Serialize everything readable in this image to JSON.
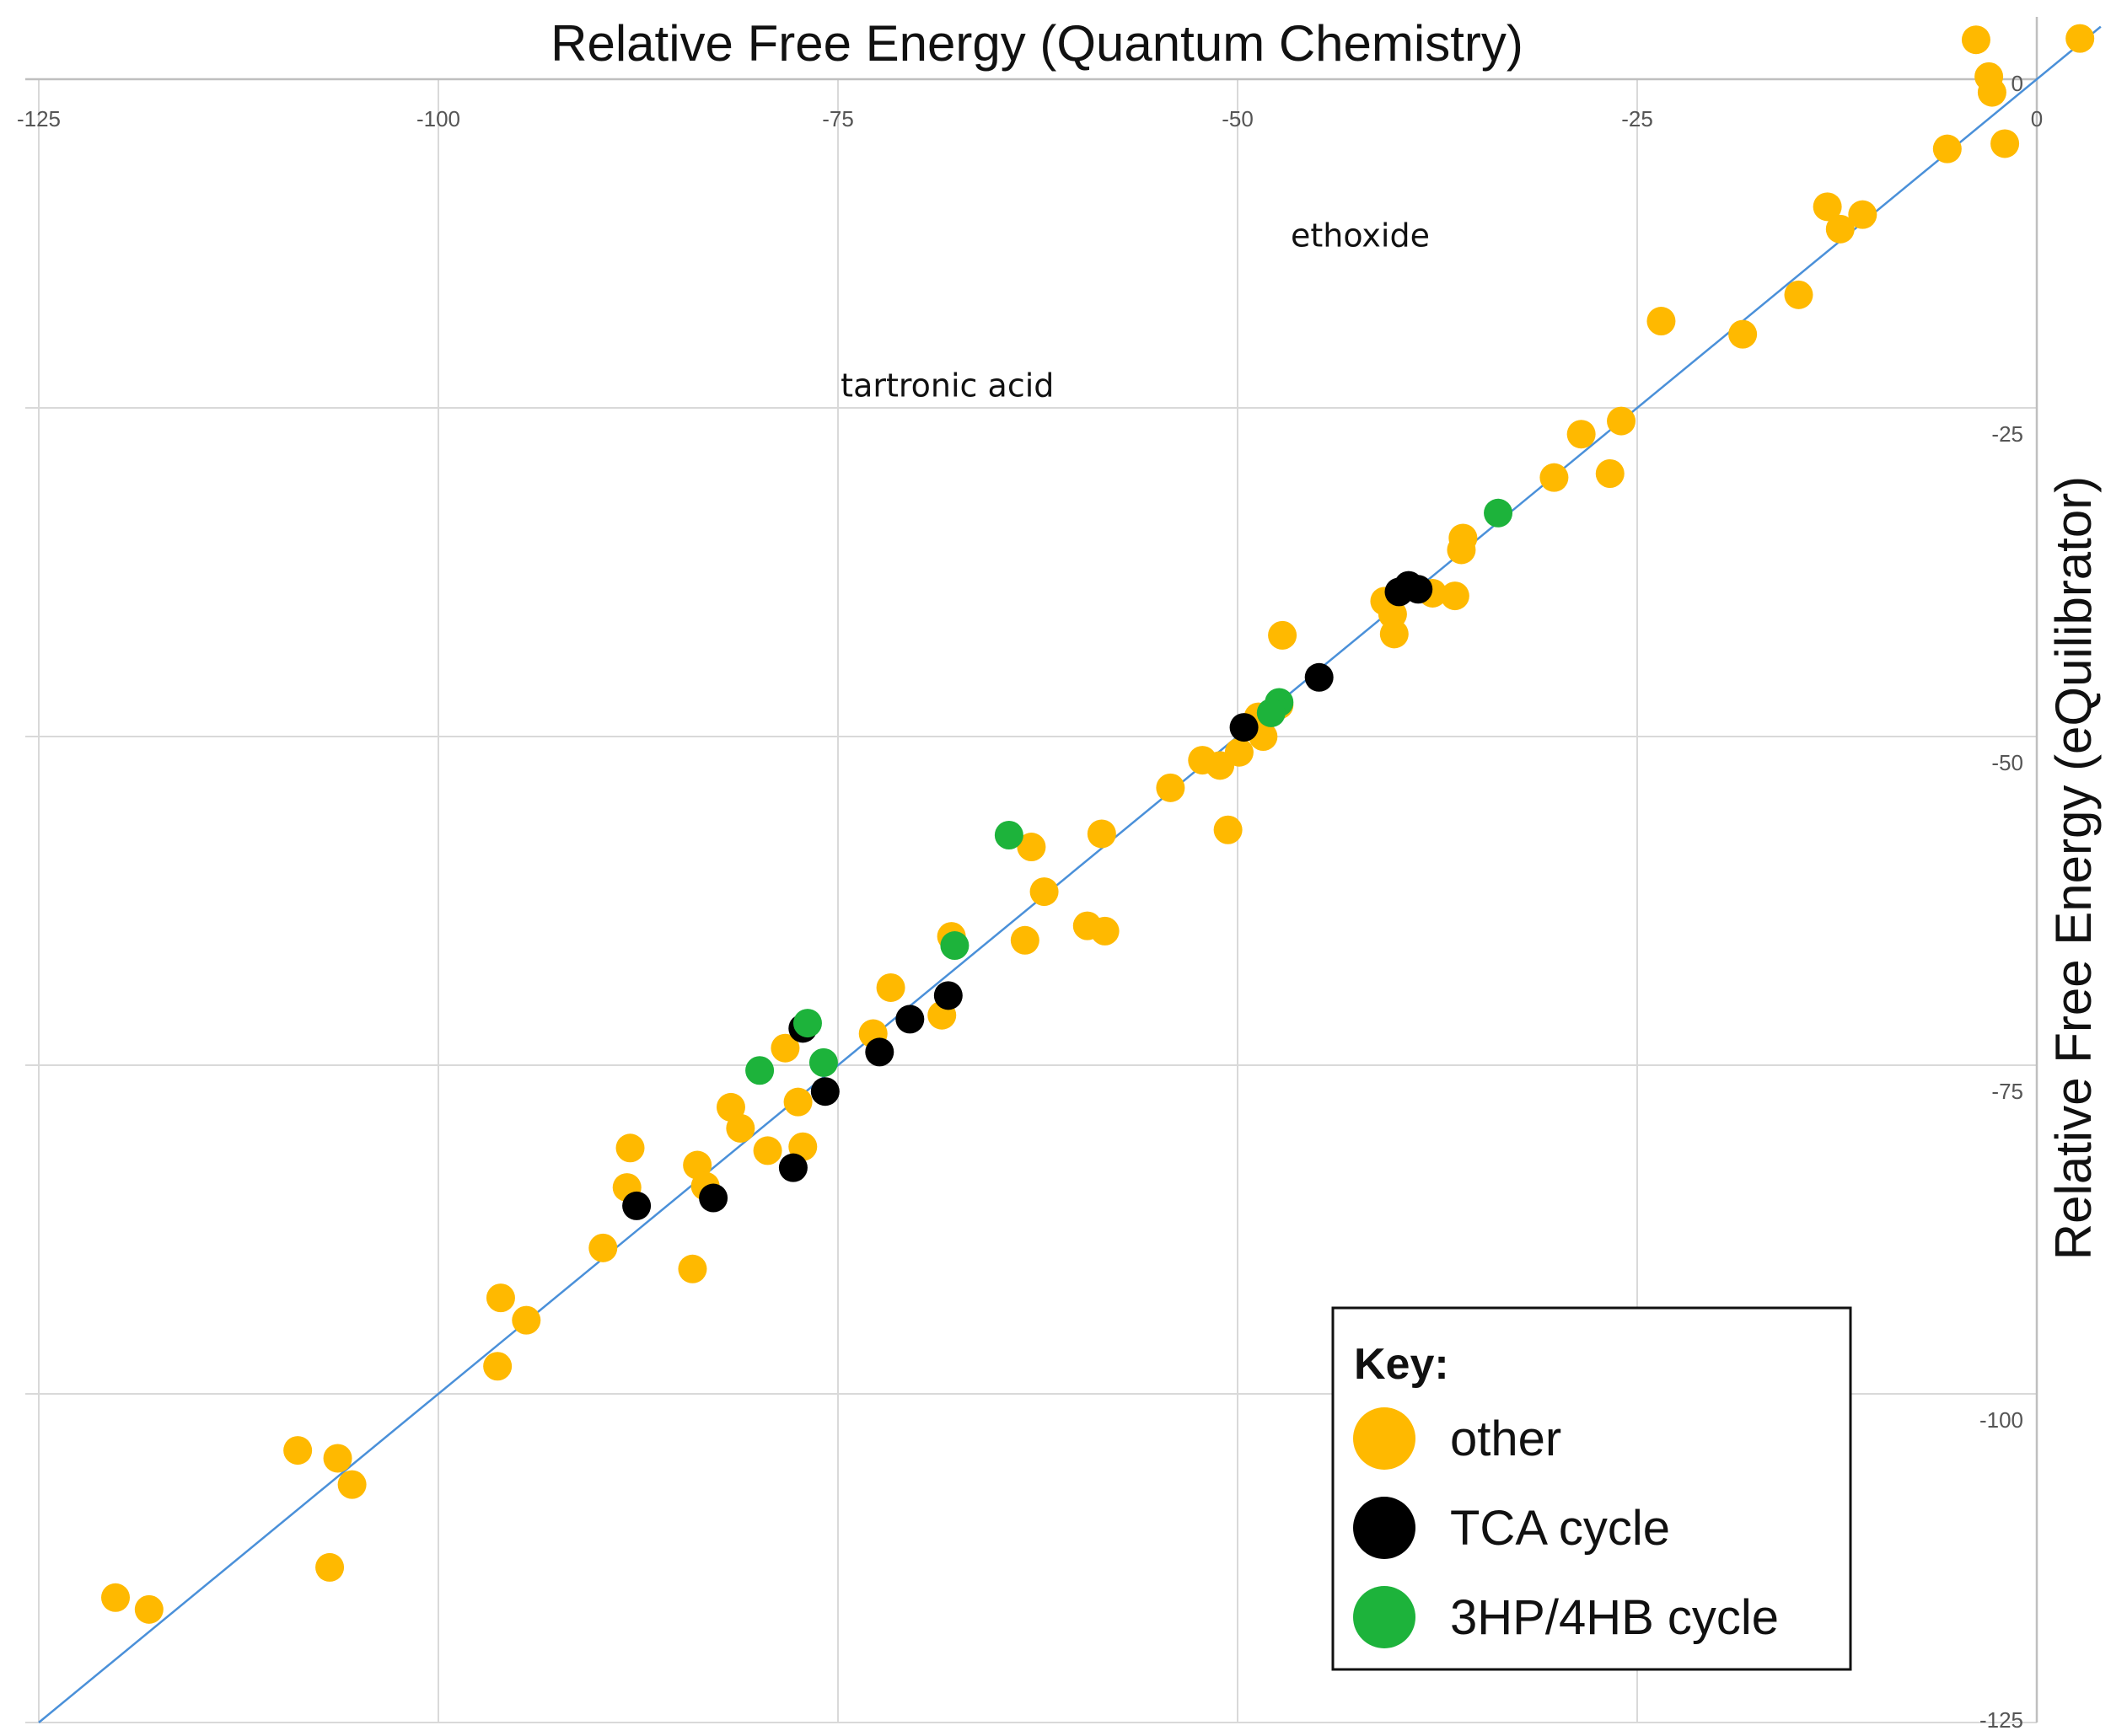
{
  "chart_data": {
    "type": "scatter",
    "title": "Relative Free Energy (Quantum Chemistry)",
    "xlabel": "Relative Free Energy (Quantum Chemistry)",
    "ylabel": "Relative Free Energy (eQuilibrator)",
    "xlim": [
      -125,
      0
    ],
    "ylim": [
      -125,
      0
    ],
    "x_ticks": [
      -125,
      -100,
      -75,
      -50,
      -25,
      0
    ],
    "y_ticks": [
      0,
      -25,
      -50,
      -75,
      -100,
      -125
    ],
    "grid": true,
    "x_axis_position": "top",
    "y_axis_position": "right",
    "reference_line": {
      "label": "y = x",
      "color": "#4a90d9"
    },
    "legend": {
      "title": "Key:",
      "placement": "bottom-right",
      "entries": [
        {
          "name": "other",
          "color": "#ffb900"
        },
        {
          "name": "TCA cycle",
          "color": "#000000"
        },
        {
          "name": "3HP/4HB cycle",
          "color": "#1db33b"
        }
      ]
    },
    "annotations": [
      {
        "text": "ethoxide",
        "x": -36.5,
        "y": -11.9
      },
      {
        "text": "tartronic acid",
        "x": -60.0,
        "y": -23.3
      }
    ],
    "series": [
      {
        "name": "other",
        "color": "#ffb900",
        "points": [
          [
            2.7,
            3.1
          ],
          [
            -3.8,
            3.0
          ],
          [
            -3.0,
            0.2
          ],
          [
            -2.8,
            -1.0
          ],
          [
            -5.6,
            -5.3
          ],
          [
            -2.0,
            -4.9
          ],
          [
            -13.1,
            -9.7
          ],
          [
            -12.3,
            -11.4
          ],
          [
            -10.9,
            -10.3
          ],
          [
            -14.9,
            -16.4
          ],
          [
            -18.4,
            -19.4
          ],
          [
            -23.5,
            -18.4
          ],
          [
            -26.0,
            -26.0
          ],
          [
            -28.5,
            -27.0
          ],
          [
            -26.7,
            -30.0
          ],
          [
            -30.2,
            -30.3
          ],
          [
            -35.9,
            -34.9
          ],
          [
            -36.0,
            -35.8
          ],
          [
            -36.4,
            -39.3
          ],
          [
            -37.8,
            -39.1
          ],
          [
            -40.8,
            -39.7
          ],
          [
            -40.3,
            -40.7
          ],
          [
            -40.2,
            -42.2
          ],
          [
            -47.2,
            -42.3
          ],
          [
            -47.4,
            -47.6
          ],
          [
            -48.7,
            -48.5
          ],
          [
            -48.4,
            -50.0
          ],
          [
            -49.9,
            -51.2
          ],
          [
            -51.1,
            -52.2
          ],
          [
            -52.2,
            -51.8
          ],
          [
            -54.2,
            -53.9
          ],
          [
            -50.6,
            -57.1
          ],
          [
            -58.5,
            -57.4
          ],
          [
            -62.9,
            -58.4
          ],
          [
            -62.1,
            -61.8
          ],
          [
            -67.9,
            -65.2
          ],
          [
            -63.3,
            -65.5
          ],
          [
            -59.4,
            -64.4
          ],
          [
            -58.3,
            -64.8
          ],
          [
            -71.7,
            -69.1
          ],
          [
            -68.5,
            -71.2
          ],
          [
            -72.8,
            -72.6
          ],
          [
            -78.3,
            -73.7
          ],
          [
            -77.5,
            -77.8
          ],
          [
            -81.7,
            -78.2
          ],
          [
            -81.1,
            -79.8
          ],
          [
            -79.4,
            -81.5
          ],
          [
            -77.2,
            -81.2
          ],
          [
            -83.8,
            -82.6
          ],
          [
            -83.3,
            -84.2
          ],
          [
            -88.0,
            -81.3
          ],
          [
            -88.2,
            -84.3
          ],
          [
            -89.7,
            -88.9
          ],
          [
            -84.1,
            -90.5
          ],
          [
            -96.1,
            -92.7
          ],
          [
            -94.5,
            -94.4
          ],
          [
            -96.3,
            -97.9
          ],
          [
            -108.8,
            -104.3
          ],
          [
            -106.3,
            -104.9
          ],
          [
            -105.4,
            -106.9
          ],
          [
            -106.8,
            -113.2
          ],
          [
            -120.2,
            -115.5
          ],
          [
            -118.1,
            -116.4
          ]
        ]
      },
      {
        "name": "TCA cycle",
        "color": "#000000",
        "points": [
          [
            -39.3,
            -38.5
          ],
          [
            -38.7,
            -38.8
          ],
          [
            -39.9,
            -39.0
          ],
          [
            -44.9,
            -45.5
          ],
          [
            -49.6,
            -49.3
          ],
          [
            -68.1,
            -69.7
          ],
          [
            -70.5,
            -71.5
          ],
          [
            -72.4,
            -74.0
          ],
          [
            -77.2,
            -72.2
          ],
          [
            -75.8,
            -77.0
          ],
          [
            -77.8,
            -82.8
          ],
          [
            -82.8,
            -85.1
          ],
          [
            -87.6,
            -85.7
          ]
        ]
      },
      {
        "name": "3HP/4HB cycle",
        "color": "#1db33b",
        "points": [
          [
            -33.7,
            -33.0
          ],
          [
            -47.4,
            -47.4
          ],
          [
            -47.9,
            -48.2
          ],
          [
            -64.3,
            -57.5
          ],
          [
            -67.7,
            -65.9
          ],
          [
            -76.9,
            -71.8
          ],
          [
            -75.9,
            -74.8
          ],
          [
            -79.9,
            -75.4
          ]
        ]
      }
    ]
  }
}
